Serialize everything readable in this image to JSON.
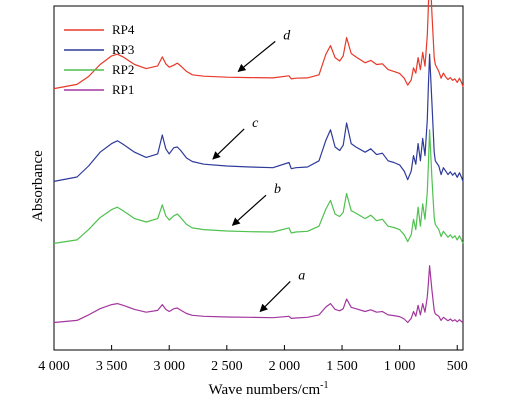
{
  "chart_data": {
    "type": "line",
    "title": "",
    "xlabel": "Wave numbers/cm",
    "xlabel_sup": "-1",
    "ylabel": "Absorbance",
    "xlim": [
      4000,
      450
    ],
    "x_reversed": true,
    "x_ticks": [
      4000,
      3500,
      3000,
      2500,
      2000,
      1500,
      1000,
      500
    ],
    "x_tick_labels": [
      "4 000",
      "3 500",
      "3 000",
      "2 500",
      "2 000",
      "1 500",
      "1 000",
      "500"
    ],
    "ylim": [
      0,
      1
    ],
    "y_ticks_shown": false,
    "grid": false,
    "legend_position": "top-left",
    "series": [
      {
        "name": "RP4",
        "color": "#e8392a",
        "offset": 0.76,
        "x": [
          4000,
          3800,
          3700,
          3600,
          3500,
          3450,
          3400,
          3300,
          3200,
          3100,
          3060,
          3030,
          3000,
          2960,
          2930,
          2900,
          2850,
          2800,
          2700,
          2500,
          2300,
          2100,
          1960,
          1940,
          1900,
          1800,
          1700,
          1640,
          1600,
          1560,
          1520,
          1490,
          1460,
          1420,
          1380,
          1300,
          1250,
          1200,
          1150,
          1100,
          1050,
          1000,
          960,
          930,
          900,
          880,
          860,
          840,
          820,
          800,
          780,
          760,
          750,
          740,
          720,
          700,
          690,
          660,
          640,
          620,
          600,
          580,
          560,
          540,
          520,
          500,
          480,
          460,
          450
        ],
        "y": [
          0.0,
          0.012,
          0.035,
          0.07,
          0.095,
          0.1,
          0.092,
          0.07,
          0.058,
          0.066,
          0.092,
          0.072,
          0.062,
          0.068,
          0.074,
          0.066,
          0.05,
          0.04,
          0.036,
          0.033,
          0.032,
          0.031,
          0.037,
          0.028,
          0.03,
          0.031,
          0.04,
          0.1,
          0.125,
          0.09,
          0.08,
          0.095,
          0.148,
          0.102,
          0.092,
          0.075,
          0.082,
          0.07,
          0.072,
          0.055,
          0.05,
          0.044,
          0.03,
          0.01,
          0.025,
          0.06,
          0.045,
          0.09,
          0.055,
          0.105,
          0.065,
          0.155,
          0.24,
          0.37,
          0.22,
          0.09,
          0.07,
          0.05,
          0.03,
          0.045,
          0.034,
          0.026,
          0.032,
          0.024,
          0.028,
          0.018,
          0.03,
          0.016,
          0.005
        ]
      },
      {
        "name": "RP3",
        "color": "#2f3b9a",
        "offset": 0.49,
        "x": [
          4000,
          3800,
          3700,
          3600,
          3500,
          3450,
          3400,
          3300,
          3200,
          3100,
          3060,
          3030,
          3000,
          2960,
          2930,
          2900,
          2850,
          2800,
          2700,
          2500,
          2300,
          2100,
          1960,
          1940,
          1900,
          1800,
          1700,
          1640,
          1600,
          1560,
          1520,
          1490,
          1460,
          1420,
          1380,
          1300,
          1250,
          1200,
          1150,
          1100,
          1050,
          1000,
          960,
          930,
          900,
          880,
          860,
          840,
          820,
          800,
          780,
          760,
          750,
          740,
          720,
          700,
          690,
          660,
          640,
          620,
          600,
          580,
          560,
          540,
          520,
          500,
          480,
          460,
          450
        ],
        "y": [
          0.0,
          0.013,
          0.045,
          0.085,
          0.11,
          0.118,
          0.108,
          0.085,
          0.07,
          0.08,
          0.135,
          0.095,
          0.08,
          0.098,
          0.1,
          0.09,
          0.068,
          0.058,
          0.05,
          0.045,
          0.042,
          0.04,
          0.055,
          0.037,
          0.04,
          0.042,
          0.06,
          0.12,
          0.15,
          0.1,
          0.09,
          0.105,
          0.17,
          0.11,
          0.1,
          0.085,
          0.095,
          0.078,
          0.082,
          0.06,
          0.055,
          0.048,
          0.03,
          0.005,
          0.03,
          0.075,
          0.05,
          0.11,
          0.06,
          0.125,
          0.075,
          0.18,
          0.28,
          0.37,
          0.23,
          0.085,
          0.06,
          0.045,
          0.02,
          0.04,
          0.03,
          0.02,
          0.028,
          0.018,
          0.025,
          0.012,
          0.025,
          0.01,
          0.0
        ]
      },
      {
        "name": "RP2",
        "color": "#4fc14f",
        "offset": 0.31,
        "x": [
          4000,
          3800,
          3700,
          3600,
          3500,
          3450,
          3400,
          3300,
          3200,
          3100,
          3060,
          3030,
          3000,
          2960,
          2930,
          2900,
          2850,
          2800,
          2700,
          2500,
          2300,
          2100,
          1960,
          1940,
          1900,
          1800,
          1700,
          1640,
          1600,
          1560,
          1520,
          1490,
          1460,
          1420,
          1380,
          1300,
          1250,
          1200,
          1150,
          1100,
          1050,
          1000,
          960,
          930,
          900,
          880,
          860,
          840,
          820,
          800,
          780,
          760,
          750,
          740,
          720,
          700,
          690,
          660,
          640,
          620,
          600,
          580,
          560,
          540,
          520,
          500,
          480,
          460,
          450
        ],
        "y": [
          0.0,
          0.01,
          0.04,
          0.075,
          0.098,
          0.105,
          0.095,
          0.072,
          0.062,
          0.072,
          0.112,
          0.08,
          0.068,
          0.08,
          0.085,
          0.075,
          0.055,
          0.045,
          0.04,
          0.036,
          0.034,
          0.033,
          0.045,
          0.03,
          0.033,
          0.035,
          0.05,
          0.1,
          0.125,
          0.085,
          0.078,
          0.09,
          0.145,
          0.095,
          0.088,
          0.072,
          0.082,
          0.066,
          0.07,
          0.05,
          0.046,
          0.04,
          0.025,
          0.005,
          0.025,
          0.07,
          0.04,
          0.105,
          0.05,
          0.115,
          0.07,
          0.15,
          0.23,
          0.33,
          0.19,
          0.075,
          0.055,
          0.04,
          0.02,
          0.035,
          0.026,
          0.018,
          0.025,
          0.016,
          0.022,
          0.01,
          0.022,
          0.008,
          0.0
        ]
      },
      {
        "name": "RP1",
        "color": "#a3379f",
        "offset": 0.08,
        "x": [
          4000,
          3800,
          3700,
          3600,
          3500,
          3450,
          3400,
          3300,
          3200,
          3100,
          3060,
          3030,
          3000,
          2960,
          2930,
          2900,
          2850,
          2800,
          2700,
          2500,
          2300,
          2100,
          1960,
          1940,
          1900,
          1800,
          1700,
          1640,
          1600,
          1560,
          1520,
          1490,
          1460,
          1420,
          1380,
          1300,
          1250,
          1200,
          1150,
          1100,
          1050,
          1000,
          960,
          930,
          900,
          880,
          860,
          840,
          820,
          800,
          780,
          760,
          750,
          740,
          720,
          700,
          690,
          660,
          640,
          620,
          600,
          580,
          560,
          540,
          520,
          500,
          480,
          460,
          450
        ],
        "y": [
          0.0,
          0.006,
          0.022,
          0.04,
          0.052,
          0.055,
          0.05,
          0.038,
          0.03,
          0.035,
          0.052,
          0.038,
          0.032,
          0.04,
          0.042,
          0.036,
          0.026,
          0.021,
          0.018,
          0.016,
          0.015,
          0.014,
          0.018,
          0.012,
          0.013,
          0.015,
          0.022,
          0.045,
          0.055,
          0.038,
          0.034,
          0.04,
          0.068,
          0.044,
          0.04,
          0.032,
          0.037,
          0.03,
          0.032,
          0.022,
          0.02,
          0.017,
          0.01,
          0.0,
          0.012,
          0.032,
          0.018,
          0.05,
          0.022,
          0.055,
          0.03,
          0.075,
          0.115,
          0.165,
          0.095,
          0.035,
          0.025,
          0.018,
          0.006,
          0.015,
          0.01,
          0.005,
          0.01,
          0.004,
          0.008,
          0.002,
          0.008,
          0.002,
          0.0
        ]
      }
    ],
    "annotations": [
      {
        "label": "d",
        "series": "RP4",
        "arrow_to_x": 2400,
        "text_x": 2010
      },
      {
        "label": "c",
        "series": "RP3",
        "arrow_to_x": 2620,
        "text_x": 2280
      },
      {
        "label": "b",
        "series": "RP2",
        "arrow_to_x": 2450,
        "text_x": 2090
      },
      {
        "label": "a",
        "series": "RP1",
        "arrow_to_x": 2210,
        "text_x": 1880
      }
    ]
  }
}
